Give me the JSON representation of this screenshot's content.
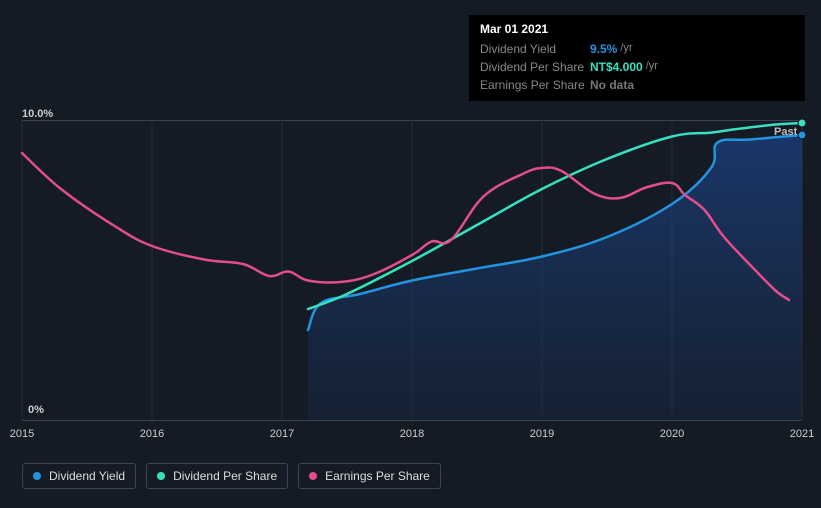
{
  "tooltip": {
    "date": "Mar 01 2021",
    "rows": [
      {
        "label": "Dividend Yield",
        "value": "9.5%",
        "unit": "/yr",
        "color": "#2394df"
      },
      {
        "label": "Dividend Per Share",
        "value": "NT$4.000",
        "unit": "/yr",
        "color": "#38e0c1"
      },
      {
        "label": "Earnings Per Share",
        "value": "No data",
        "unit": "",
        "color": "#777"
      }
    ]
  },
  "chart": {
    "type": "line",
    "background_color": "#151b24",
    "grid_color": "#3a4452",
    "xlim": [
      2015,
      2021
    ],
    "xticks": [
      2015,
      2016,
      2017,
      2018,
      2019,
      2020,
      2021
    ],
    "xtick_labels": [
      "2015",
      "2016",
      "2017",
      "2018",
      "2019",
      "2020",
      "2021"
    ],
    "ylim": [
      0,
      10
    ],
    "ytick_labels": {
      "top": "10.0%",
      "bottom": "0%"
    },
    "past_marker": {
      "label": "Past",
      "x": 2021
    },
    "area_fill": {
      "series": "dividend_yield",
      "gradient": [
        "#1e4ea3",
        "#182a4a"
      ],
      "opacity": 0.55
    },
    "series": [
      {
        "id": "dividend_yield",
        "label": "Dividend Yield",
        "color": "#2394df",
        "line_width": 2.5,
        "points": [
          [
            2017.2,
            3.0
          ],
          [
            2017.3,
            3.9
          ],
          [
            2017.6,
            4.2
          ],
          [
            2018.0,
            4.65
          ],
          [
            2018.5,
            5.05
          ],
          [
            2019.0,
            5.45
          ],
          [
            2019.5,
            6.1
          ],
          [
            2020.0,
            7.2
          ],
          [
            2020.3,
            8.4
          ],
          [
            2020.35,
            9.25
          ],
          [
            2020.6,
            9.35
          ],
          [
            2021.0,
            9.5
          ]
        ],
        "end_dot": true
      },
      {
        "id": "dividend_per_share",
        "label": "Dividend Per Share",
        "color": "#38e0c1",
        "line_width": 2.5,
        "points": [
          [
            2017.2,
            3.7
          ],
          [
            2017.5,
            4.2
          ],
          [
            2018.0,
            5.3
          ],
          [
            2018.5,
            6.5
          ],
          [
            2019.0,
            7.7
          ],
          [
            2019.5,
            8.7
          ],
          [
            2020.0,
            9.45
          ],
          [
            2020.3,
            9.58
          ],
          [
            2020.5,
            9.7
          ],
          [
            2020.8,
            9.85
          ],
          [
            2021.0,
            9.9
          ]
        ],
        "end_dot": true
      },
      {
        "id": "earnings_per_share",
        "label": "Earnings Per Share",
        "color": "#e44d8c",
        "line_width": 2.5,
        "points": [
          [
            2015.0,
            8.9
          ],
          [
            2015.3,
            7.7
          ],
          [
            2015.7,
            6.5
          ],
          [
            2016.0,
            5.8
          ],
          [
            2016.4,
            5.35
          ],
          [
            2016.7,
            5.2
          ],
          [
            2016.9,
            4.8
          ],
          [
            2017.05,
            4.95
          ],
          [
            2017.2,
            4.65
          ],
          [
            2017.45,
            4.6
          ],
          [
            2017.7,
            4.85
          ],
          [
            2018.0,
            5.5
          ],
          [
            2018.15,
            5.95
          ],
          [
            2018.3,
            6.0
          ],
          [
            2018.55,
            7.45
          ],
          [
            2018.85,
            8.2
          ],
          [
            2019.0,
            8.4
          ],
          [
            2019.15,
            8.3
          ],
          [
            2019.4,
            7.55
          ],
          [
            2019.6,
            7.4
          ],
          [
            2019.8,
            7.75
          ],
          [
            2020.0,
            7.9
          ],
          [
            2020.1,
            7.5
          ],
          [
            2020.25,
            7.0
          ],
          [
            2020.4,
            6.1
          ],
          [
            2020.65,
            4.95
          ],
          [
            2020.8,
            4.3
          ],
          [
            2020.9,
            4.0
          ]
        ],
        "end_dot": false
      }
    ]
  },
  "legend": [
    {
      "label": "Dividend Yield",
      "color": "#2394df"
    },
    {
      "label": "Dividend Per Share",
      "color": "#38e0c1"
    },
    {
      "label": "Earnings Per Share",
      "color": "#e44d8c"
    }
  ]
}
